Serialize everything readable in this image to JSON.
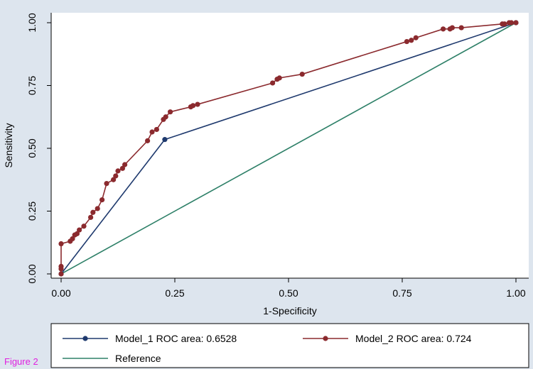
{
  "caption": "Figure 2",
  "colors": {
    "model_1": "#1f3a6e",
    "model_2": "#8b2a2e",
    "reference": "#2e8068",
    "background": "#dde5ee",
    "plot_area": "#ffffff"
  },
  "chart_data": {
    "type": "line",
    "xlabel": "1-Specificity",
    "ylabel": "Sensitivity",
    "xlim": [
      0,
      1
    ],
    "ylim": [
      0,
      1
    ],
    "xticks": [
      0,
      0.25,
      0.5,
      0.75,
      1
    ],
    "yticks": [
      0,
      0.25,
      0.5,
      0.75,
      1
    ],
    "xtick_labels": [
      "0.00",
      "0.25",
      "0.50",
      "0.75",
      "1.00"
    ],
    "ytick_labels": [
      "0.00",
      "0.25",
      "0.50",
      "0.75",
      "1.00"
    ],
    "grid": false,
    "legend_placement": "bottom",
    "series": [
      {
        "name": "Model_1 ROC area: 0.6528",
        "x": [
          0,
          0.228,
          1
        ],
        "y": [
          0,
          0.535,
          1
        ]
      },
      {
        "name": "Model_2 ROC area: 0.724",
        "x": [
          0,
          0,
          0,
          0,
          0.02,
          0.025,
          0.03,
          0.035,
          0.04,
          0.05,
          0.065,
          0.07,
          0.08,
          0.09,
          0.1,
          0.115,
          0.12,
          0.125,
          0.135,
          0.14,
          0.19,
          0.2,
          0.21,
          0.225,
          0.23,
          0.24,
          0.285,
          0.29,
          0.3,
          0.465,
          0.475,
          0.48,
          0.53,
          0.76,
          0.77,
          0.78,
          0.84,
          0.855,
          0.86,
          0.88,
          0.97,
          0.975,
          0.985,
          0.99,
          1
        ],
        "y": [
          0,
          0.02,
          0.03,
          0.12,
          0.13,
          0.14,
          0.155,
          0.16,
          0.175,
          0.19,
          0.225,
          0.245,
          0.26,
          0.295,
          0.36,
          0.375,
          0.39,
          0.41,
          0.42,
          0.435,
          0.53,
          0.565,
          0.575,
          0.615,
          0.625,
          0.645,
          0.665,
          0.67,
          0.675,
          0.76,
          0.775,
          0.78,
          0.795,
          0.925,
          0.93,
          0.94,
          0.975,
          0.975,
          0.98,
          0.98,
          0.995,
          0.995,
          1,
          1,
          1
        ]
      },
      {
        "name": "Reference",
        "x": [
          0,
          1
        ],
        "y": [
          0,
          1
        ]
      }
    ]
  }
}
